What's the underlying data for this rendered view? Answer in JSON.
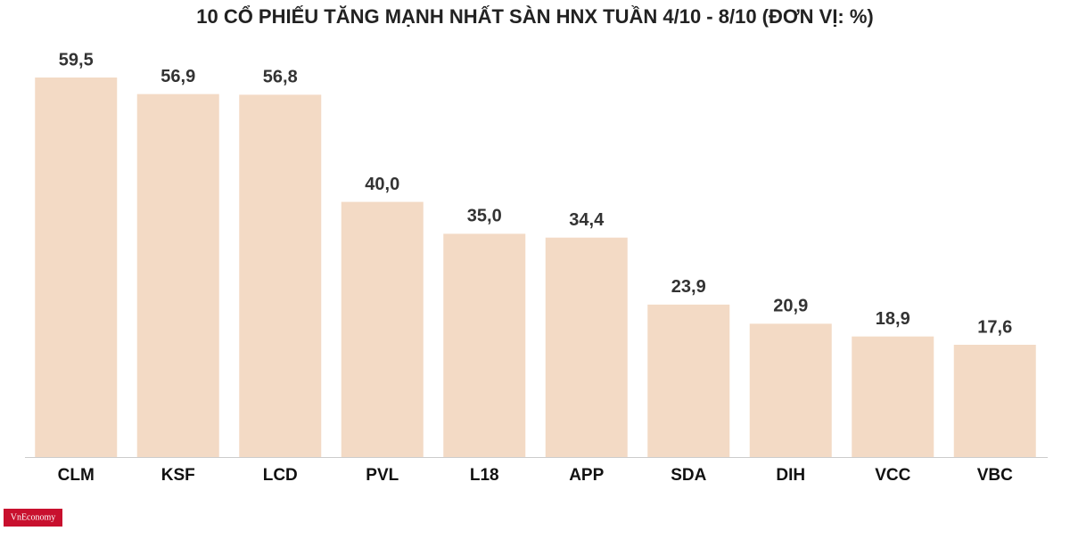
{
  "chart_data": {
    "type": "bar",
    "title": "10 CỔ PHIẾU TĂNG MẠNH NHẤT SÀN HNX TUẦN 4/10 - 8/10 (ĐƠN VỊ: %)",
    "categories": [
      "CLM",
      "KSF",
      "LCD",
      "PVL",
      "L18",
      "APP",
      "SDA",
      "DIH",
      "VCC",
      "VBC"
    ],
    "values": [
      59.5,
      56.9,
      56.8,
      40.0,
      35.0,
      34.4,
      23.9,
      20.9,
      18.9,
      17.6
    ],
    "value_labels": [
      "59,5",
      "56,9",
      "56,8",
      "40,0",
      "35,0",
      "34,4",
      "23,9",
      "20,9",
      "18,9",
      "17,6"
    ],
    "color": "#f3dac5",
    "source_logo": "VnEconomy"
  }
}
